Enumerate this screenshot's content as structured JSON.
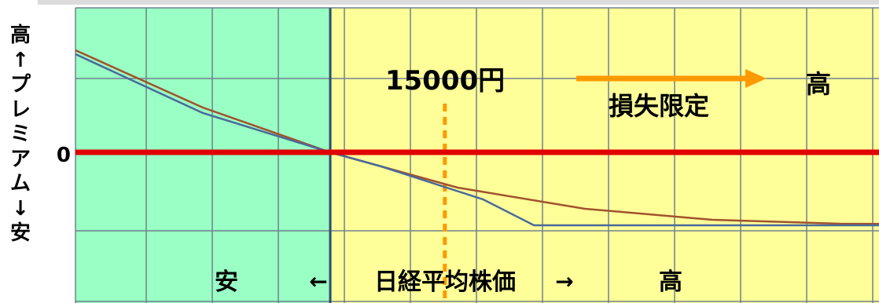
{
  "y_axis_label_chars": [
    "高",
    "↑",
    "プ",
    "レ",
    "ミ",
    "ア",
    "ム",
    "↓",
    "安"
  ],
  "colors": {
    "left_region": "#99ffc4",
    "right_region": "#ffff99",
    "grid": "#708090",
    "zero_line": "#e00000",
    "series_a": "#a0522d",
    "series_b": "#4a6a9a",
    "strike_marker": "#ff9900",
    "arrow": "#ff9900"
  },
  "chart_data": {
    "type": "line",
    "title": "",
    "xlabel": {
      "low": "安",
      "low_arrow": "←",
      "center": "日経平均株価",
      "high_arrow": "→",
      "high": "高"
    },
    "ylabel": "高↑プレミアム↓安",
    "y_tick_label": "0",
    "strike_annotation": "15000円",
    "loss_annotation": "損失限定",
    "loss_annotation_end": "高",
    "regions": [
      {
        "name": "left",
        "color": "#99ffc4"
      },
      {
        "name": "right",
        "color": "#ffff99"
      }
    ],
    "series": [
      {
        "key": "a",
        "points": [
          [
            0.0,
            1.3
          ],
          [
            0.5,
            0.57
          ],
          [
            1.0,
            0.0
          ],
          [
            1.5,
            -0.45
          ],
          [
            2.0,
            -0.72
          ],
          [
            2.5,
            -0.86
          ],
          [
            3.0,
            -0.91
          ],
          [
            3.5,
            -0.92
          ],
          [
            4.0,
            -0.92
          ]
        ]
      },
      {
        "key": "b",
        "points": [
          [
            0.0,
            1.25
          ],
          [
            0.5,
            0.5
          ],
          [
            1.0,
            0.0
          ],
          [
            1.2,
            -0.18
          ],
          [
            1.6,
            -0.6
          ],
          [
            1.8,
            -0.93
          ],
          [
            4.0,
            -0.93
          ]
        ]
      }
    ]
  }
}
